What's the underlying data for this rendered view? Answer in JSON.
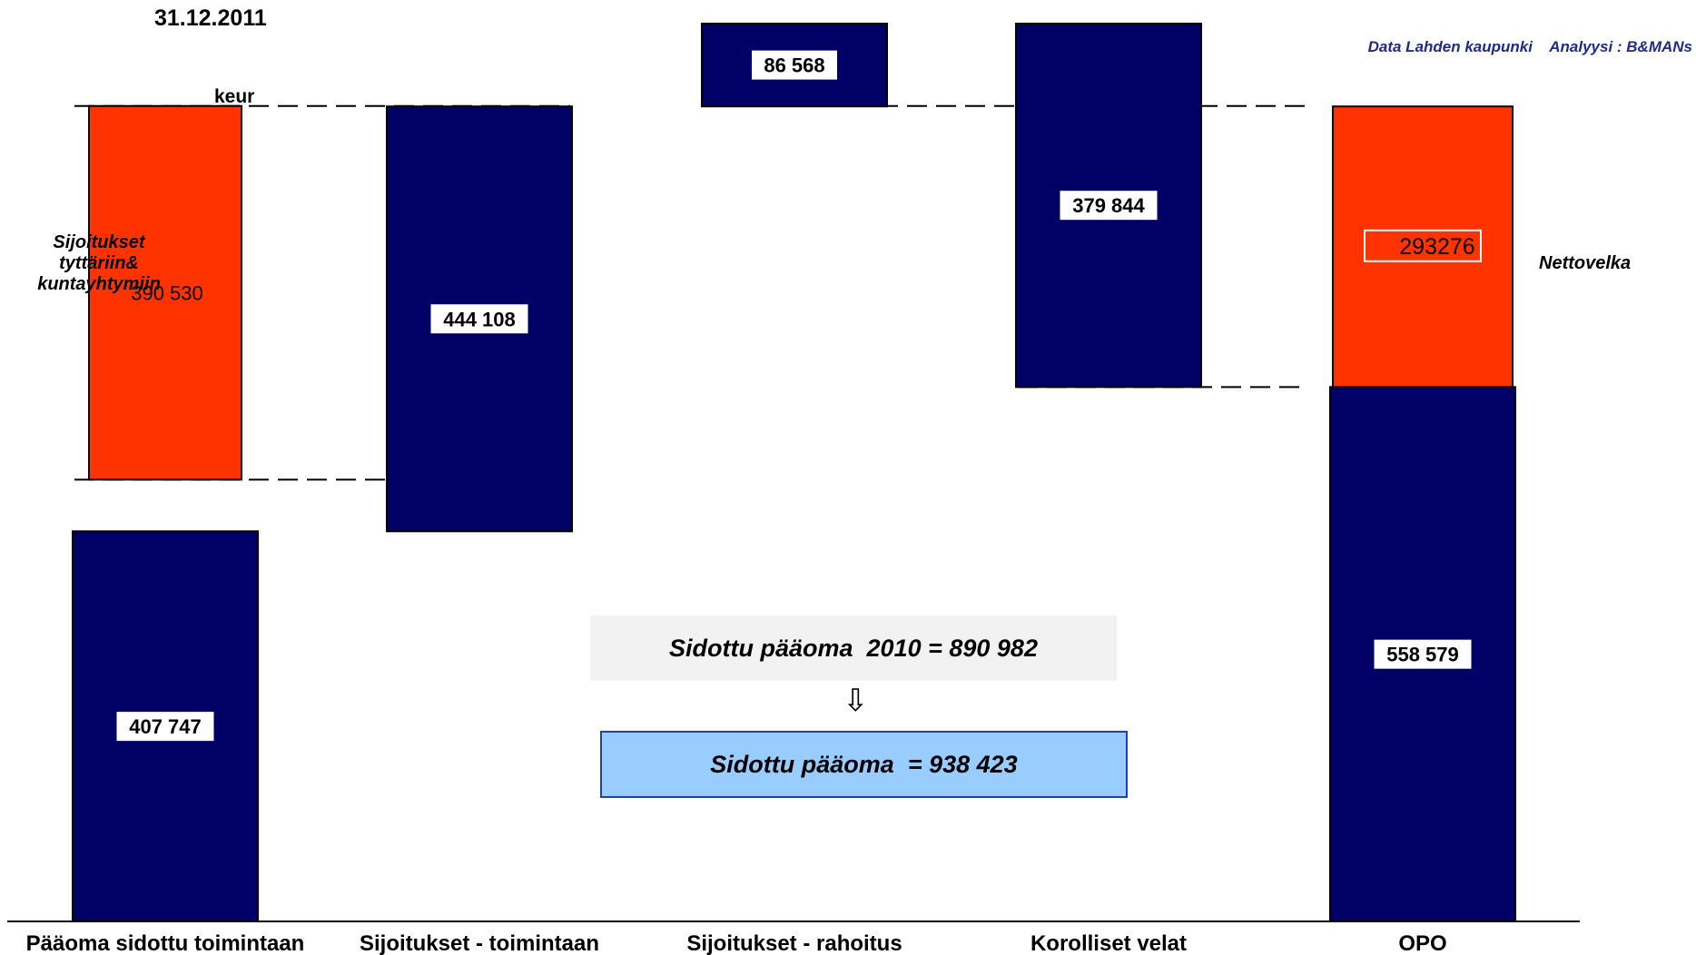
{
  "header": {
    "date": "31.12.2011",
    "unit": "keur",
    "source": "Data Lahden kaupunki    Analyysi : B&MANs"
  },
  "annotations": {
    "left": "Sijoitukset tyttäriin& kuntayhtymiin",
    "right": "Nettovelka"
  },
  "boxes": {
    "previous": "Sidottu pääoma  2010 = 890 982",
    "arrow": "⇩",
    "total": "Sidottu pääoma  = 938 423"
  },
  "colors": {
    "navy": "#000066",
    "orange": "#ff3300",
    "total_box": "#99ccff",
    "prev_box": "#f2f2f2"
  },
  "chart_data": {
    "type": "bar",
    "subtype": "waterfall",
    "categories": [
      "Pääoma sidottu toimintaan",
      "Sijoitukset - toimintaan",
      "Sijoitukset - rahoitus",
      "Korolliset velat",
      "OPO"
    ],
    "ylim": [
      0,
      938423
    ],
    "bars": [
      {
        "category": 0,
        "base": 0,
        "value": 407747,
        "label": "407 747",
        "color": "navy"
      },
      {
        "category": 0,
        "base": 461770,
        "value": 390530,
        "label": "390 530",
        "color": "orange",
        "label_style": "plain"
      },
      {
        "category": 1,
        "base": 407747,
        "value": 444108,
        "label": "444 108",
        "color": "navy"
      },
      {
        "category": 2,
        "base": 851855,
        "value": 86568,
        "label": "86 568",
        "color": "navy"
      },
      {
        "category": 3,
        "base": 558579,
        "value": 379844,
        "label": "379 844",
        "color": "navy"
      },
      {
        "category": 4,
        "base": 0,
        "value": 558579,
        "label": "558 579",
        "color": "navy"
      },
      {
        "category": 4,
        "base": 558579,
        "value": 293276,
        "label": "293276",
        "color": "orange",
        "label_style": "outlined"
      }
    ],
    "reference_lines": [
      {
        "value": 852300,
        "from": 0,
        "to": 1
      },
      {
        "value": 461770,
        "from": 0,
        "to": 1
      },
      {
        "value": 852300,
        "from": 2,
        "to": 4
      },
      {
        "value": 558579,
        "from": 3,
        "to": 4
      }
    ]
  }
}
